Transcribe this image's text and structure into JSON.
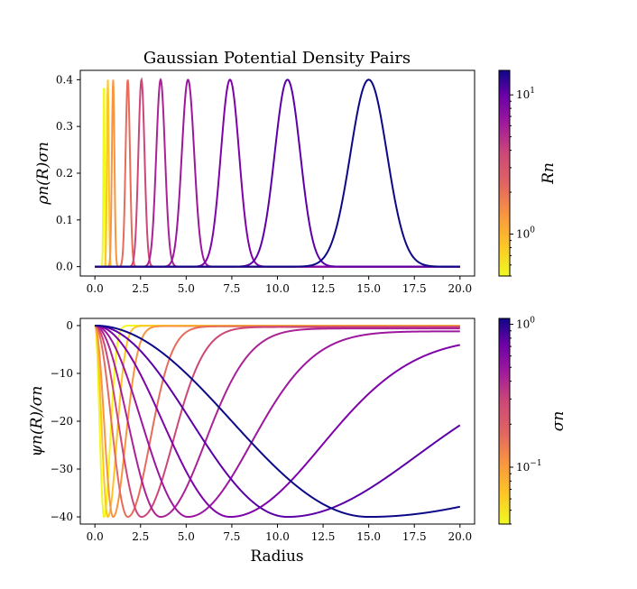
{
  "chart_data": [
    {
      "type": "line",
      "title": "Gaussian Potential Density Pairs",
      "xlabel": "",
      "ylabel": "ρn(R)σn",
      "xlim": [
        -0.8,
        20.8
      ],
      "ylim": [
        -0.02,
        0.42
      ],
      "x_ticks": [
        0.0,
        2.5,
        5.0,
        7.5,
        10.0,
        12.5,
        15.0,
        17.5,
        20.0
      ],
      "x_tick_labels": [
        "0.0",
        "2.5",
        "5.0",
        "7.5",
        "10.0",
        "12.5",
        "15.0",
        "17.5",
        "20.0"
      ],
      "y_ticks": [
        0.0,
        0.1,
        0.2,
        0.3,
        0.4
      ],
      "y_tick_labels": [
        "0.0",
        "0.1",
        "0.2",
        "0.3",
        "0.4"
      ],
      "x_range": [
        0,
        20
      ],
      "grid": false,
      "series": [
        {
          "center": 0.5,
          "width": 0.035,
          "peak": 0.4,
          "color": "#f0f921"
        },
        {
          "center": 0.71,
          "width": 0.05,
          "peak": 0.4,
          "color": "#fdc527"
        },
        {
          "center": 1.0,
          "width": 0.07,
          "peak": 0.4,
          "color": "#f89540"
        },
        {
          "center": 1.8,
          "width": 0.12,
          "peak": 0.4,
          "color": "#e66c5c"
        },
        {
          "center": 2.55,
          "width": 0.17,
          "peak": 0.4,
          "color": "#cc4778"
        },
        {
          "center": 3.6,
          "width": 0.24,
          "peak": 0.4,
          "color": "#aa2395"
        },
        {
          "center": 5.1,
          "width": 0.34,
          "peak": 0.4,
          "color": "#9c179e"
        },
        {
          "center": 7.4,
          "width": 0.5,
          "peak": 0.4,
          "color": "#7e03a8"
        },
        {
          "center": 10.55,
          "width": 0.7,
          "peak": 0.4,
          "color": "#5c01a6"
        },
        {
          "center": 15.0,
          "width": 1.0,
          "peak": 0.4,
          "color": "#0d0887"
        }
      ],
      "colorbar": {
        "label": "Rn",
        "scale": "log",
        "range": [
          0.5,
          15.0
        ],
        "tick_labels": [
          "10^0",
          "10^1"
        ],
        "tick_values": [
          1,
          10
        ],
        "colormap": "plasma_r"
      }
    },
    {
      "type": "line",
      "title": "",
      "xlabel": "Radius",
      "ylabel": "ψn(R)/σn",
      "xlim": [
        -0.8,
        20.8
      ],
      "ylim": [
        -41.5,
        1.5
      ],
      "x_ticks": [
        0.0,
        2.5,
        5.0,
        7.5,
        10.0,
        12.5,
        15.0,
        17.5,
        20.0
      ],
      "x_tick_labels": [
        "0.0",
        "2.5",
        "5.0",
        "7.5",
        "10.0",
        "12.5",
        "15.0",
        "17.5",
        "20.0"
      ],
      "y_ticks": [
        0,
        -10,
        -20,
        -30,
        -40
      ],
      "y_tick_labels": [
        "0",
        "−10",
        "−20",
        "−30",
        "−40"
      ],
      "x_range": [
        0,
        20
      ],
      "grid": false,
      "series": [
        {
          "min_x": 0.5,
          "min_y": -40,
          "far_value": 0,
          "color": "#f0f921"
        },
        {
          "min_x": 0.71,
          "min_y": -40,
          "far_value": -0.05,
          "color": "#fdc527"
        },
        {
          "min_x": 1.0,
          "min_y": -40,
          "far_value": -0.1,
          "color": "#f89540"
        },
        {
          "min_x": 1.8,
          "min_y": -40,
          "far_value": -0.15,
          "color": "#e66c5c"
        },
        {
          "min_x": 2.55,
          "min_y": -40,
          "far_value": -0.3,
          "color": "#cc4778"
        },
        {
          "min_x": 3.6,
          "min_y": -40,
          "far_value": -0.6,
          "color": "#aa2395"
        },
        {
          "min_x": 5.1,
          "min_y": -40,
          "far_value": -1.2,
          "color": "#9c179e"
        },
        {
          "min_x": 7.4,
          "min_y": -40,
          "far_value": -2.5,
          "color": "#7e03a8"
        },
        {
          "min_x": 10.55,
          "min_y": -40,
          "far_value": -7.3,
          "color": "#5c01a6"
        },
        {
          "min_x": 15.0,
          "min_y": -40,
          "far_value": -21.5,
          "color": "#0d0887"
        }
      ],
      "colorbar": {
        "label": "σn",
        "scale": "log",
        "range": [
          0.04,
          1.1
        ],
        "tick_labels": [
          "10^−1",
          "10^0"
        ],
        "tick_values": [
          0.1,
          1
        ],
        "colormap": "plasma_r"
      }
    }
  ]
}
